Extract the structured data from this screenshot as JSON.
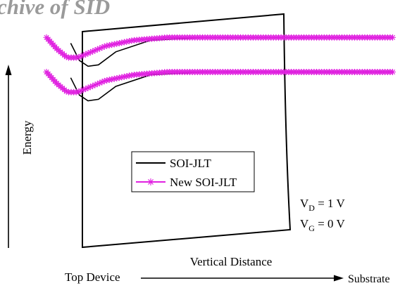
{
  "watermark": "chive of SID",
  "chart_data": {
    "type": "line",
    "title": "",
    "xlabel": "Vertical Distance",
    "ylabel": "Energy",
    "axis_left_label": "Top Device",
    "axis_right_label": "Substrate",
    "annotations": [
      {
        "main": "V",
        "sub": "D",
        "rest": " = 1 V"
      },
      {
        "main": "V",
        "sub": "G",
        "rest": " = 0 V"
      }
    ],
    "legend": {
      "placement": "center",
      "entries": [
        {
          "label": "SOI-JLT",
          "color": "#000000",
          "marker": "none"
        },
        {
          "label": "New SOI-JLT",
          "color": "#e020e0",
          "marker": "asterisk"
        }
      ]
    },
    "series": [
      {
        "name": "SOI-JLT",
        "color": "#000000",
        "segments": [
          {
            "x": [
              0.07,
              0.095,
              0.12,
              0.15,
              0.2,
              0.3,
              0.45,
              0.6,
              0.75,
              0.9,
              1.0
            ],
            "y": [
              0.85,
              0.79,
              0.77,
              0.775,
              0.82,
              0.86,
              0.87,
              0.87,
              0.87,
              0.87,
              0.87
            ]
          },
          {
            "x": [
              0.07,
              0.095,
              0.12,
              0.15,
              0.2,
              0.3,
              0.45,
              0.6,
              0.75,
              0.9,
              1.0
            ],
            "y": [
              0.73,
              0.67,
              0.65,
              0.655,
              0.7,
              0.74,
              0.75,
              0.75,
              0.75,
              0.75,
              0.75
            ]
          }
        ]
      },
      {
        "name": "New SOI-JLT",
        "color": "#e020e0",
        "segments": [
          {
            "x": [
              0.0,
              0.03,
              0.06,
              0.09,
              0.12,
              0.17,
              0.25,
              0.35,
              0.5,
              0.65,
              0.8,
              0.9,
              1.0
            ],
            "y": [
              0.87,
              0.83,
              0.8,
              0.8,
              0.815,
              0.84,
              0.86,
              0.87,
              0.87,
              0.87,
              0.87,
              0.87,
              0.87
            ]
          },
          {
            "x": [
              0.0,
              0.03,
              0.06,
              0.09,
              0.12,
              0.17,
              0.25,
              0.35,
              0.5,
              0.65,
              0.8,
              0.9,
              1.0
            ],
            "y": [
              0.75,
              0.71,
              0.68,
              0.68,
              0.695,
              0.72,
              0.74,
              0.75,
              0.75,
              0.75,
              0.75,
              0.75,
              0.75
            ]
          }
        ]
      }
    ]
  }
}
